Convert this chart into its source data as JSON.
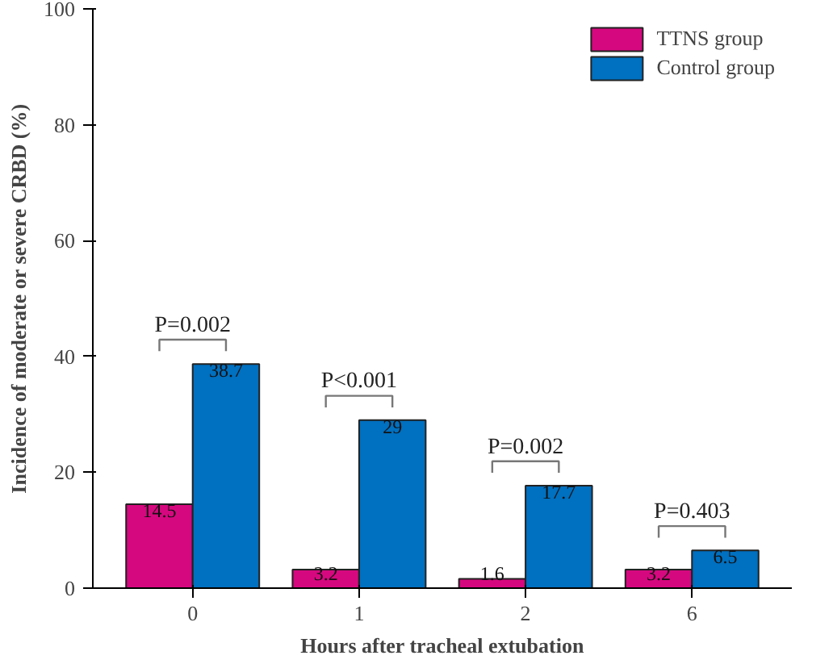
{
  "chart_data": {
    "type": "bar",
    "xlabel": "Hours after tracheal extubation",
    "ylabel": "Incidence of moderate or severe CRBD (%)",
    "categories": [
      "0",
      "1",
      "2",
      "6"
    ],
    "series": [
      {
        "name": "TTNS group",
        "color": "#d6087f",
        "values": [
          14.5,
          3.2,
          1.6,
          3.2
        ]
      },
      {
        "name": "Control group",
        "color": "#0070c0",
        "values": [
          38.7,
          29,
          17.7,
          6.5
        ]
      }
    ],
    "ylim": [
      0,
      100
    ],
    "yticks": [
      0,
      20,
      40,
      60,
      80,
      100
    ],
    "grid": false,
    "legend": "top right",
    "data_labels": true,
    "annotations": [
      "P=0.002",
      "P<0.001",
      "P=0.002",
      "P=0.403"
    ]
  }
}
